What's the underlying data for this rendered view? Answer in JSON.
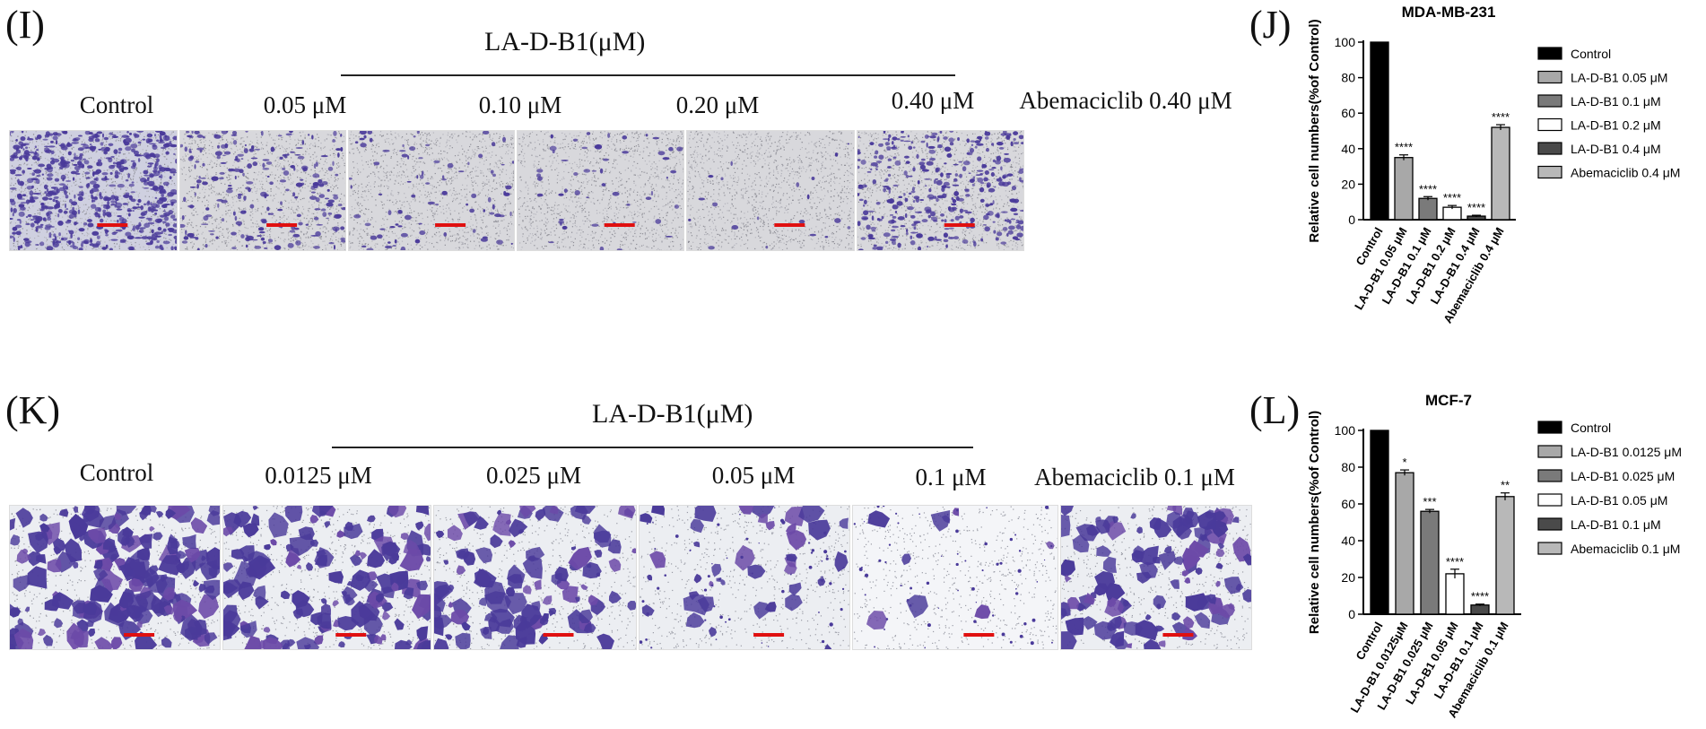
{
  "panels": [
    {
      "label": "(I)",
      "group_title": "LA-D-B1(μM)",
      "columns": [
        "Control",
        "0.05 μM",
        "0.10 μM",
        "0.20 μM",
        "0.40 μM",
        "Abemaciclib 0.40 μM"
      ],
      "density": [
        1.0,
        0.35,
        0.13,
        0.08,
        0.03,
        0.55
      ],
      "style": "sparse"
    },
    {
      "label": "(K)",
      "group_title": "LA-D-B1(μM)",
      "columns": [
        "Control",
        "0.0125 μM",
        "0.025 μM",
        "0.05 μM",
        "0.1 μM",
        "Abemaciclib 0.1 μM"
      ],
      "density": [
        1.0,
        0.78,
        0.57,
        0.22,
        0.05,
        0.64
      ],
      "style": "blobs"
    }
  ],
  "chart_labels": [
    "(J)",
    "(L)"
  ],
  "colors": {
    "stain": "#4a3a9a",
    "scalebar": "#e01010",
    "bar_black": "#000000"
  },
  "chart_data": [
    {
      "type": "bar",
      "title": "MDA-MB-231",
      "ylabel": "Relative cell numbers(%of Control)",
      "ylim": [
        0,
        100
      ],
      "yticks": [
        0,
        20,
        40,
        60,
        80,
        100
      ],
      "categories": [
        "Control",
        "LA-D-B1 0.05 μM",
        "LA-D-B1 0.1 μM",
        "LA-D-B1 0.2 μM",
        "LA-D-B1 0.4 μM",
        "Abemaciclib 0.4 μM"
      ],
      "values": [
        100,
        35,
        12,
        7,
        2,
        52
      ],
      "errors": [
        0,
        1.5,
        1,
        1,
        0.5,
        1.5
      ],
      "significance": [
        "",
        "****",
        "****",
        "****",
        "****",
        "****"
      ],
      "fills": [
        "#000000",
        "#a8a8a8",
        "#7a7a7a",
        "#ffffff",
        "#4a4a4a",
        "#b8b8b8"
      ],
      "legend": [
        "Control",
        "LA-D-B1 0.05 μM",
        "LA-D-B1 0.1 μM",
        "LA-D-B1 0.2 μM",
        "LA-D-B1 0.4 μM",
        "Abemaciclib 0.4 μM"
      ],
      "legend_position": "right"
    },
    {
      "type": "bar",
      "title": "MCF-7",
      "ylabel": "Relative cell numbers(%of Control)",
      "ylim": [
        0,
        100
      ],
      "yticks": [
        0,
        20,
        40,
        60,
        80,
        100
      ],
      "categories": [
        "Control",
        "LA-D-B1 0.0125μM",
        "LA-D-B1 0.025 μM",
        "LA-D-B1 0.05 μM",
        "LA-D-B1 0.1 μM",
        "Abemaciclib 0.1 μM"
      ],
      "values": [
        100,
        77,
        56,
        22,
        5,
        64
      ],
      "errors": [
        0,
        1.5,
        1,
        2.5,
        0.5,
        2
      ],
      "significance": [
        "",
        "*",
        "***",
        "****",
        "****",
        "**"
      ],
      "fills": [
        "#000000",
        "#a8a8a8",
        "#7a7a7a",
        "#ffffff",
        "#4a4a4a",
        "#b8b8b8"
      ],
      "legend": [
        "Control",
        "LA-D-B1 0.0125 μM",
        "LA-D-B1 0.025 μM",
        "LA-D-B1 0.05 μM",
        "LA-D-B1 0.1 μM",
        "Abemaciclib 0.1 μM"
      ],
      "legend_position": "right"
    }
  ]
}
